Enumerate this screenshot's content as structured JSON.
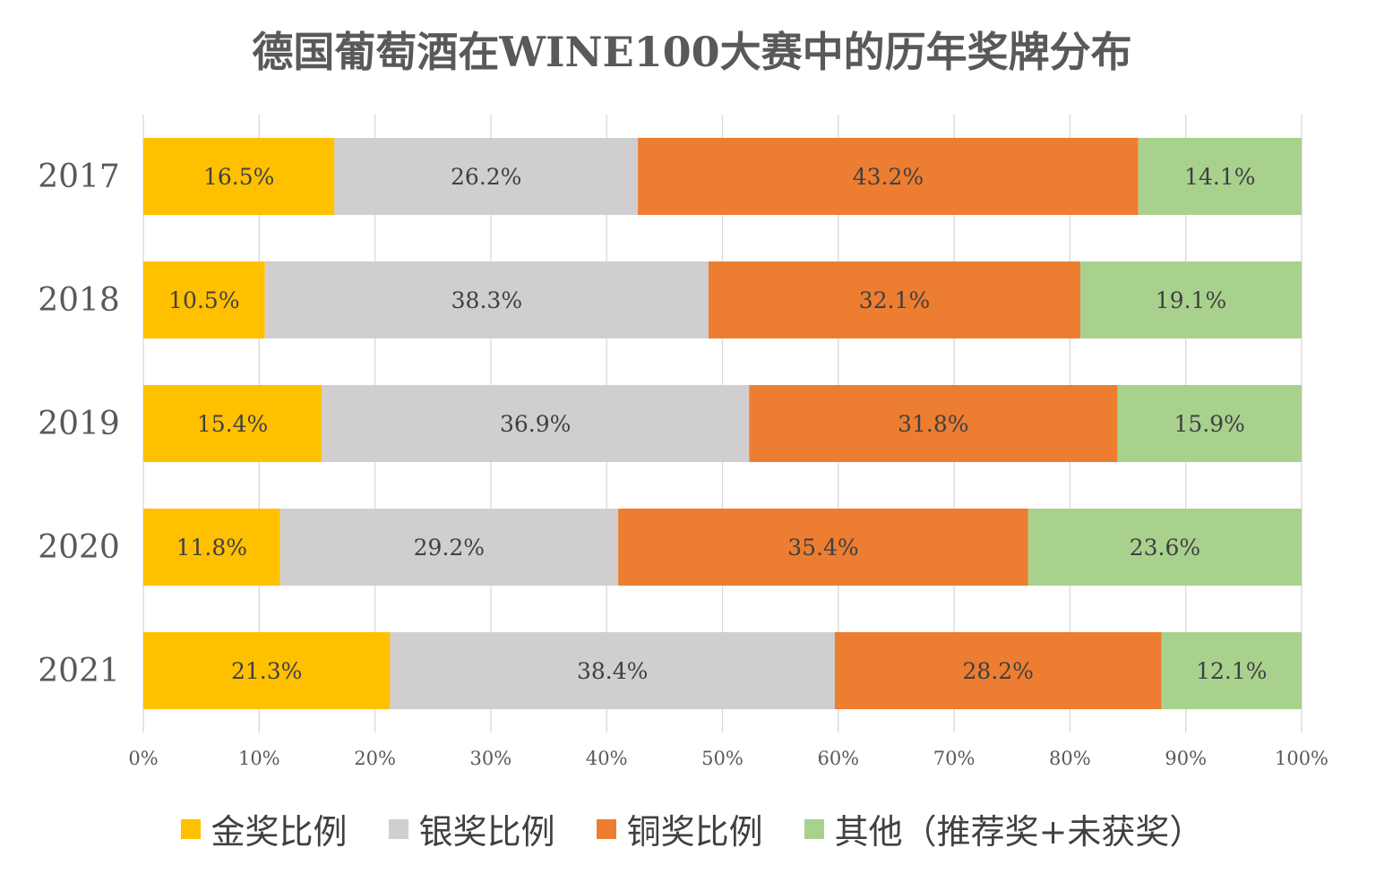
{
  "chart_data": {
    "type": "bar",
    "orientation": "horizontal",
    "stacked": "percent",
    "title": "德国葡萄酒在WINE100大赛中的历年奖牌分布",
    "categories": [
      "2017",
      "2018",
      "2019",
      "2020",
      "2021"
    ],
    "series": [
      {
        "name": "金奖比例",
        "color": "#FFC000",
        "values": [
          16.5,
          10.5,
          15.4,
          11.8,
          21.3
        ],
        "labels": [
          "16.5%",
          "10.5%",
          "15.4%",
          "11.8%",
          "21.3%"
        ]
      },
      {
        "name": "银奖比例",
        "color": "#D0CECE",
        "values": [
          26.2,
          38.3,
          36.9,
          29.2,
          38.4
        ],
        "labels": [
          "26.2%",
          "38.3%",
          "36.9%",
          "29.2%",
          "38.4%"
        ]
      },
      {
        "name": "铜奖比例",
        "color": "#ED7D31",
        "values": [
          43.2,
          32.1,
          31.8,
          35.4,
          28.2
        ],
        "labels": [
          "43.2%",
          "32.1%",
          "31.8%",
          "35.4%",
          "28.2%"
        ]
      },
      {
        "name": "其他（推荐奖+未获奖）",
        "color": "#A9D18E",
        "values": [
          14.1,
          19.1,
          15.9,
          23.6,
          12.1
        ],
        "labels": [
          "14.1%",
          "19.1%",
          "15.9%",
          "23.6%",
          "12.1%"
        ]
      }
    ],
    "xlim": [
      0,
      100
    ],
    "xticks": [
      "0%",
      "10%",
      "20%",
      "30%",
      "40%",
      "50%",
      "60%",
      "70%",
      "80%",
      "90%",
      "100%"
    ],
    "grid": true,
    "legend_position": "bottom"
  },
  "style": {
    "gridline_color": "#D9D9D9",
    "label_color": "#404040",
    "axis_label_color": "#595959"
  }
}
